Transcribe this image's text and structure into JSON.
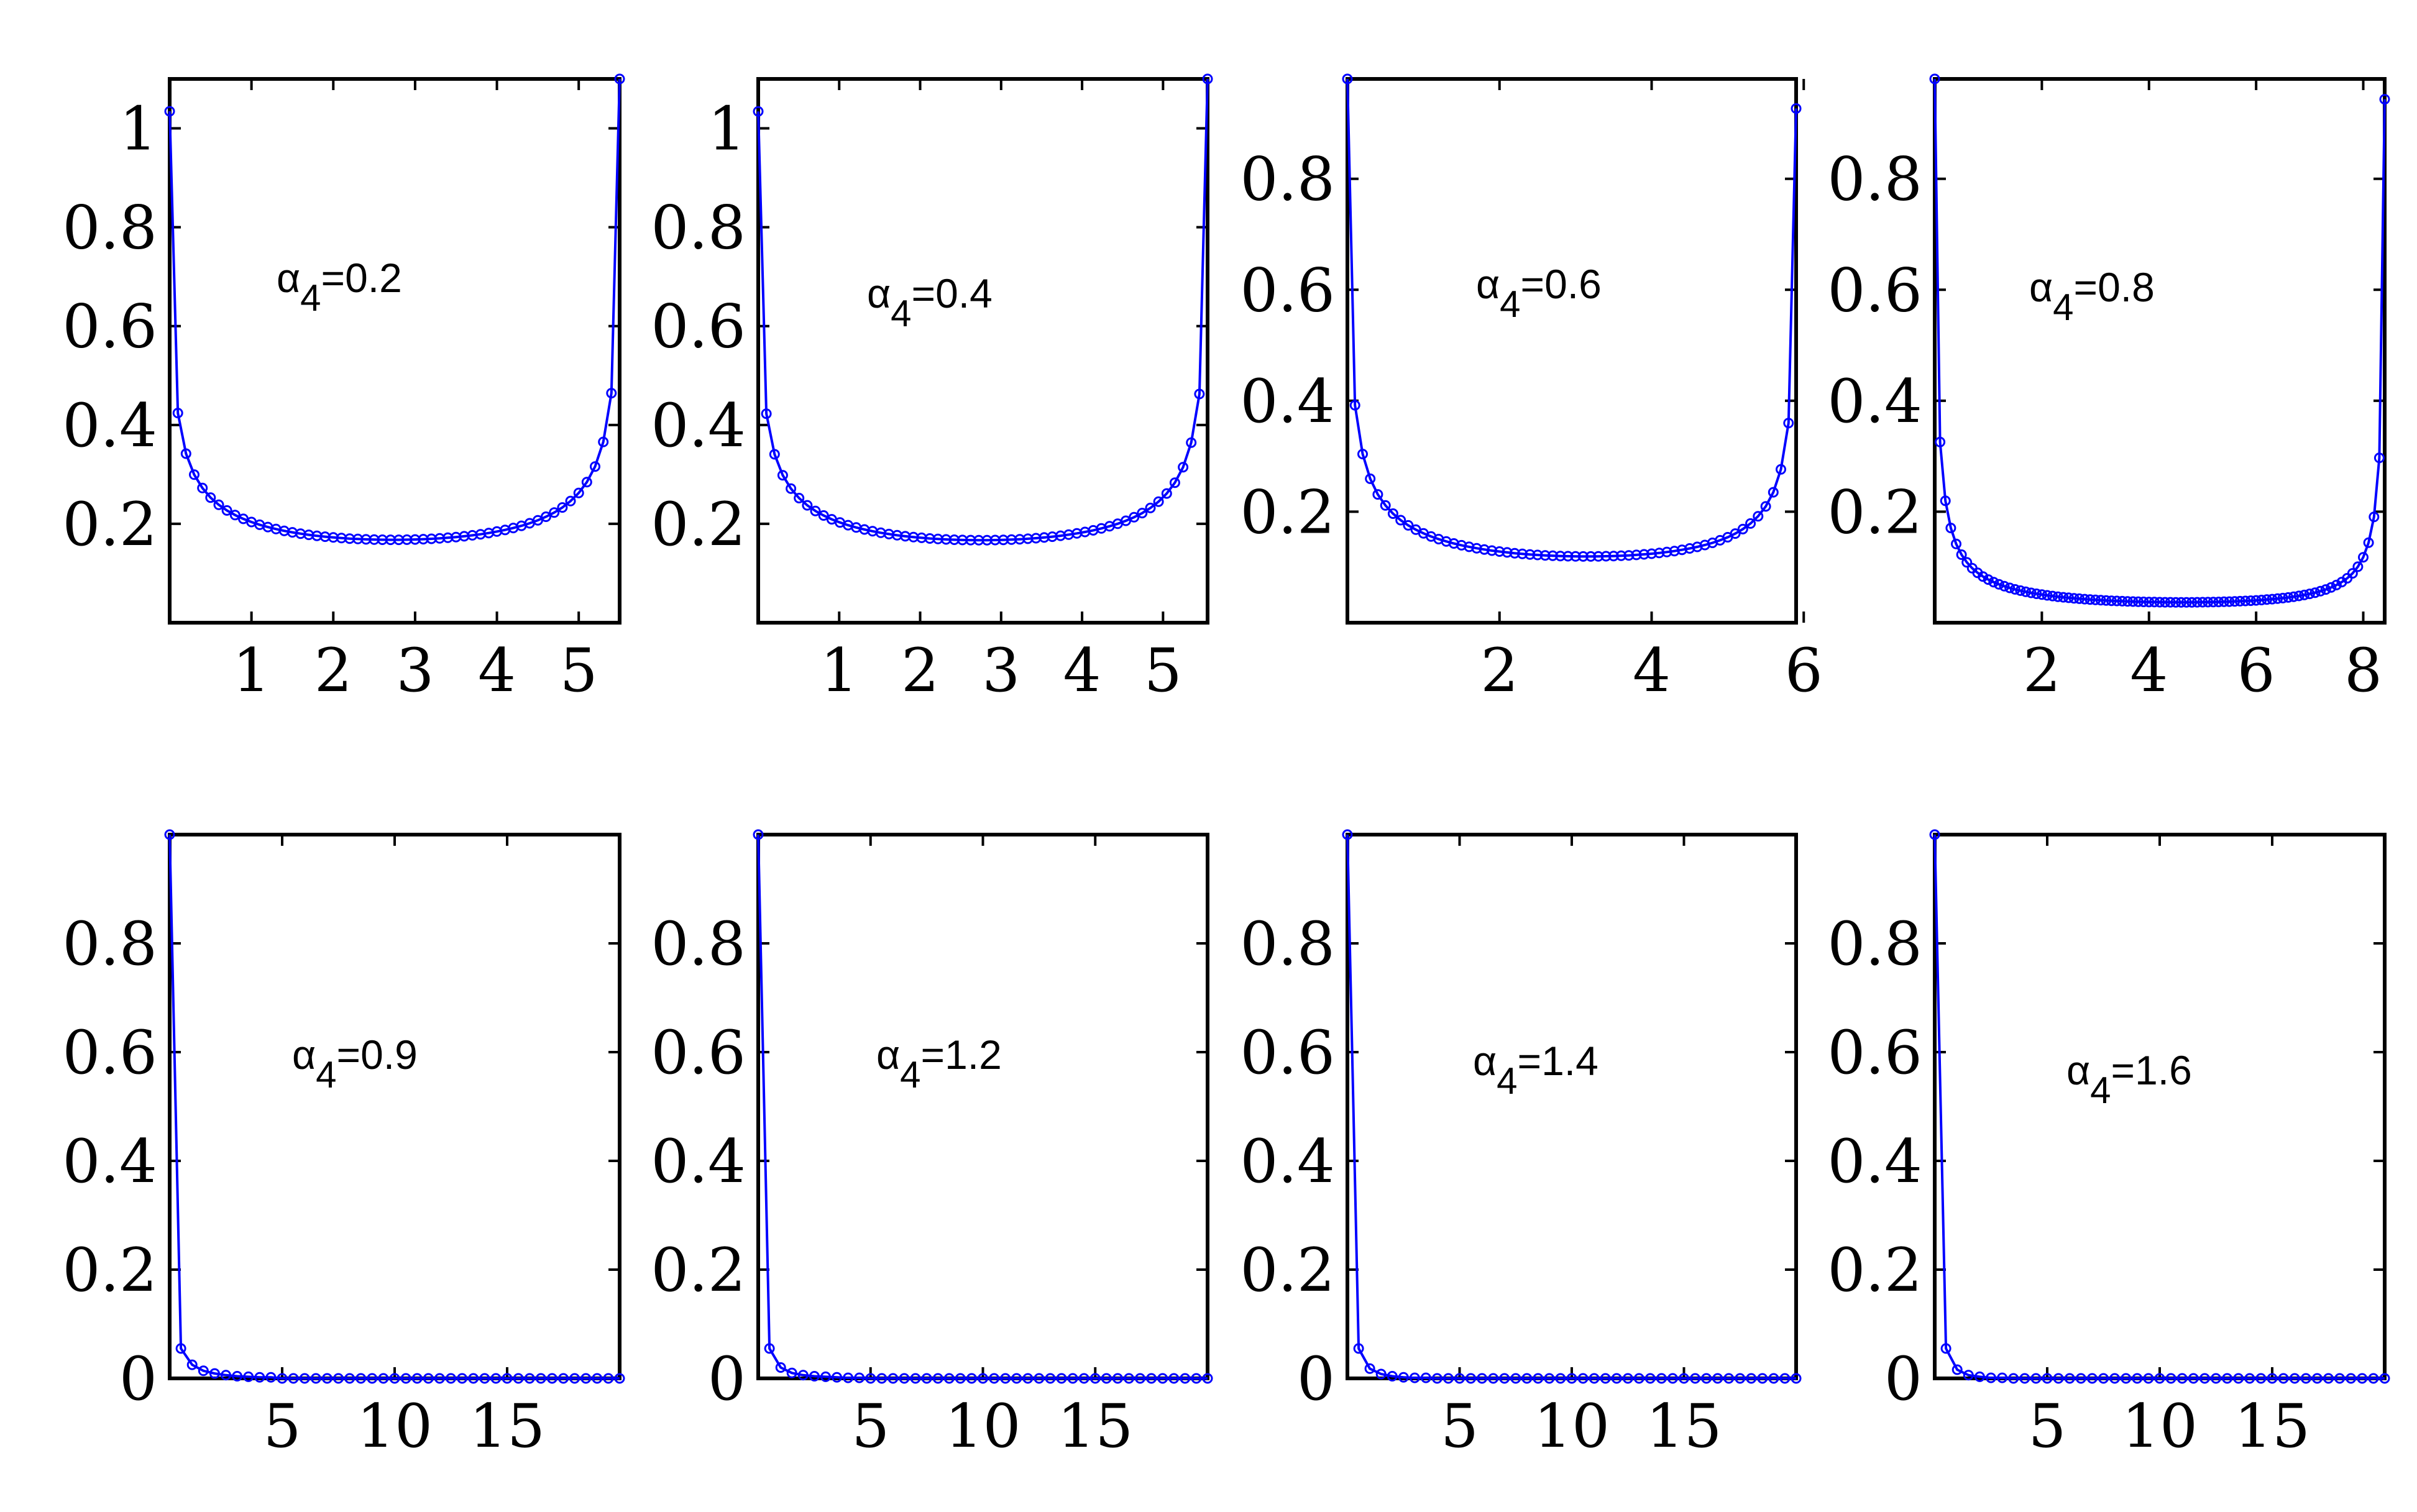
{
  "style": {
    "line_color": "#0000ff",
    "axes_color": "#000000",
    "background": "#ffffff"
  },
  "chart_data": [
    {
      "type": "line",
      "annotation_base": "α",
      "annotation_sub": "4",
      "annotation_rest": "=0.2",
      "xlim": [
        0,
        5.5
      ],
      "ylim": [
        0,
        1.1
      ],
      "xticks": [
        "1",
        "2",
        "3",
        "4",
        "5"
      ],
      "xtick_values": [
        1,
        2,
        3,
        4,
        5
      ],
      "yticks": [
        "0.2",
        "0.4",
        "0.6",
        "0.8",
        "1"
      ],
      "ytick_values": [
        0.2,
        0.4,
        0.6,
        0.8,
        1
      ],
      "x_end": 5.5,
      "n_points": 56,
      "head": 0.98,
      "head_decay": 0.55,
      "tail": 1.1,
      "tail_decay": 0.6
    },
    {
      "type": "line",
      "annotation_base": "α",
      "annotation_sub": "4",
      "annotation_rest": "=0.4",
      "xlim": [
        0,
        5.55
      ],
      "ylim": [
        0,
        1.1
      ],
      "xticks": [
        "1",
        "2",
        "3",
        "4",
        "5"
      ],
      "xtick_values": [
        1,
        2,
        3,
        4,
        5
      ],
      "yticks": [
        "0.2",
        "0.4",
        "0.6",
        "0.8",
        "1"
      ],
      "ytick_values": [
        0.2,
        0.4,
        0.6,
        0.8,
        1
      ],
      "x_end": 5.55,
      "n_points": 56,
      "head": 0.98,
      "head_decay": 0.55,
      "tail": 1.1,
      "tail_decay": 0.6
    },
    {
      "type": "line",
      "annotation_base": "α",
      "annotation_sub": "4",
      "annotation_rest": "=0.6",
      "xlim": [
        0,
        5.9
      ],
      "ylim": [
        0,
        0.98
      ],
      "xticks": [
        "2",
        "4",
        "6"
      ],
      "xtick_values": [
        2,
        4,
        6
      ],
      "yticks": [
        "0.2",
        "0.4",
        "0.6",
        "0.8"
      ],
      "ytick_values": [
        0.2,
        0.4,
        0.6,
        0.8
      ],
      "x_end": 5.9,
      "n_points": 60,
      "head": 0.98,
      "head_decay": 0.6,
      "tail": 0.88,
      "tail_decay": 0.65
    },
    {
      "type": "line",
      "annotation_base": "α",
      "annotation_sub": "4",
      "annotation_rest": "=0.8",
      "xlim": [
        0,
        8.4
      ],
      "ylim": [
        0,
        0.98
      ],
      "xticks": [
        "2",
        "4",
        "6",
        "8"
      ],
      "xtick_values": [
        2,
        4,
        6,
        8
      ],
      "yticks": [
        "0.2",
        "0.4",
        "0.6",
        "0.8"
      ],
      "ytick_values": [
        0.2,
        0.4,
        0.6,
        0.8
      ],
      "x_end": 8.4,
      "n_points": 85,
      "head": 0.98,
      "head_decay": 0.8,
      "tail": 0.93,
      "tail_decay": 0.9
    },
    {
      "type": "line",
      "annotation_base": "α",
      "annotation_sub": "4",
      "annotation_rest": "=0.9",
      "xlim": [
        0,
        20
      ],
      "ylim": [
        0,
        1
      ],
      "xticks": [
        "5",
        "10",
        "15"
      ],
      "xtick_values": [
        5,
        10,
        15
      ],
      "yticks": [
        "0",
        "0.2",
        "0.4",
        "0.6",
        "0.8"
      ],
      "ytick_values": [
        0,
        0.2,
        0.4,
        0.6,
        0.8
      ],
      "x_end": 20,
      "n_points": 41,
      "head": 1.0,
      "head_decay": 0.0,
      "tail": 0,
      "tail_decay": 0,
      "values": [
        1.0,
        0.055,
        0.025,
        0.014,
        0.009,
        0.006,
        0.004,
        0.003,
        0.002,
        0.002
      ]
    },
    {
      "type": "line",
      "annotation_base": "α",
      "annotation_sub": "4",
      "annotation_rest": "=1.2",
      "xlim": [
        0,
        20
      ],
      "ylim": [
        0,
        1
      ],
      "xticks": [
        "5",
        "10",
        "15"
      ],
      "xtick_values": [
        5,
        10,
        15
      ],
      "yticks": [
        "0",
        "0.2",
        "0.4",
        "0.6",
        "0.8"
      ],
      "ytick_values": [
        0,
        0.2,
        0.4,
        0.6,
        0.8
      ],
      "x_end": 20,
      "n_points": 41,
      "head": 1.0,
      "head_decay": 0.0,
      "tail": 0,
      "tail_decay": 0,
      "values": [
        1.0,
        0.055,
        0.02,
        0.01,
        0.006,
        0.004,
        0.003,
        0.002,
        0.001,
        0.001
      ]
    },
    {
      "type": "line",
      "annotation_base": "α",
      "annotation_sub": "4",
      "annotation_rest": "=1.4",
      "xlim": [
        0,
        20
      ],
      "ylim": [
        0,
        1
      ],
      "xticks": [
        "5",
        "10",
        "15"
      ],
      "xtick_values": [
        5,
        10,
        15
      ],
      "yticks": [
        "0",
        "0.2",
        "0.4",
        "0.6",
        "0.8"
      ],
      "ytick_values": [
        0,
        0.2,
        0.4,
        0.6,
        0.8
      ],
      "x_end": 20,
      "n_points": 41,
      "head": 1.0,
      "head_decay": 0.0,
      "tail": 0,
      "tail_decay": 0,
      "values": [
        1.0,
        0.055,
        0.018,
        0.008,
        0.004,
        0.002,
        0.001,
        0.001
      ]
    },
    {
      "type": "line",
      "annotation_base": "α",
      "annotation_sub": "4",
      "annotation_rest": "=1.6",
      "xlim": [
        0,
        20
      ],
      "ylim": [
        0,
        1
      ],
      "xticks": [
        "5",
        "10",
        "15"
      ],
      "xtick_values": [
        5,
        10,
        15
      ],
      "yticks": [
        "0",
        "0.2",
        "0.4",
        "0.6",
        "0.8"
      ],
      "ytick_values": [
        0,
        0.2,
        0.4,
        0.6,
        0.8
      ],
      "x_end": 20,
      "n_points": 41,
      "head": 1.0,
      "head_decay": 0.0,
      "tail": 0,
      "tail_decay": 0,
      "values": [
        1.0,
        0.055,
        0.016,
        0.006,
        0.003,
        0.001,
        0.001
      ]
    }
  ]
}
